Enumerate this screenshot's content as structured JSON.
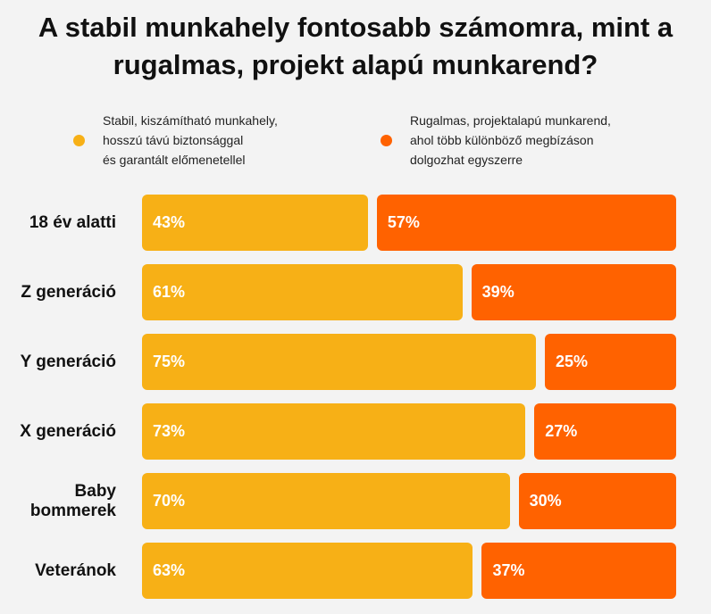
{
  "title": "A stabil munkahely fontosabb számomra, mint a rugalmas, projekt alapú munkarend?",
  "legend": [
    {
      "text": "Stabil, kiszámítható munkahely,\nhosszú távú biztonsággal\nés garantált előmenetellel",
      "color": "#f7b016"
    },
    {
      "text": "Rugalmas, projektalapú munkarend,\nahol több különböző megbízáson\ndolgozhat egyszerre",
      "color": "#ff6200"
    }
  ],
  "chart_data": {
    "type": "bar",
    "orientation": "horizontal",
    "stacked": true,
    "title": "A stabil munkahely fontosabb számomra, mint a rugalmas, projekt alapú munkarend?",
    "categories": [
      "18 év alatti",
      "Z generáció",
      "Y generáció",
      "X generáció",
      "Baby\nbommerek",
      "Veteránok"
    ],
    "series": [
      {
        "name": "Stabil, kiszámítható munkahely, hosszú távú biztonsággal és garantált előmenetellel",
        "color": "#f7b016",
        "values": [
          43,
          61,
          75,
          73,
          70,
          63
        ],
        "labels": [
          "43%",
          "61%",
          "75%",
          "73%",
          "70%",
          "63%"
        ]
      },
      {
        "name": "Rugalmas, projektalapú munkarend, ahol több különböző megbízáson dolgozhat egyszerre",
        "color": "#ff6200",
        "values": [
          57,
          39,
          25,
          27,
          30,
          37
        ],
        "labels": [
          "57%",
          "39%",
          "25%",
          "27%",
          "30%",
          "37%"
        ]
      }
    ],
    "xlim": [
      0,
      100
    ],
    "grid": false,
    "legend_position": "top"
  }
}
